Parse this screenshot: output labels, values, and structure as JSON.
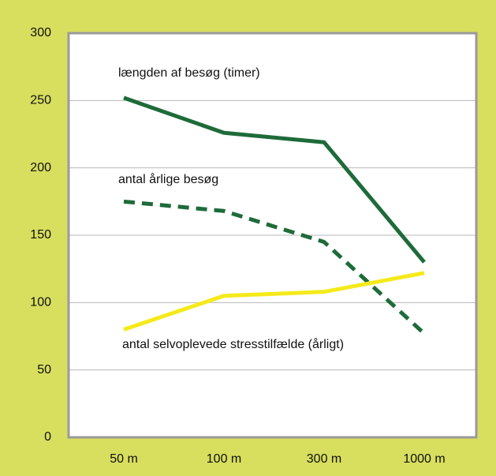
{
  "chart_data": {
    "type": "line",
    "categories": [
      "50 m",
      "100 m",
      "300 m",
      "1000 m"
    ],
    "series": [
      {
        "name": "længden af besøg (timer)",
        "color": "#1e6b3a",
        "dashed": false,
        "values": [
          252,
          226,
          219,
          130
        ]
      },
      {
        "name": "antal årlige besøg",
        "color": "#1e6b3a",
        "dashed": true,
        "values": [
          175,
          168,
          145,
          77
        ]
      },
      {
        "name": "antal selvoplevede stresstilfælde (årligt)",
        "color": "#f5ea1a",
        "dashed": false,
        "values": [
          80,
          105,
          108,
          122
        ]
      }
    ],
    "ylim": [
      0,
      300
    ],
    "yticks": [
      0,
      50,
      100,
      150,
      200,
      250,
      300
    ],
    "grid": true
  }
}
